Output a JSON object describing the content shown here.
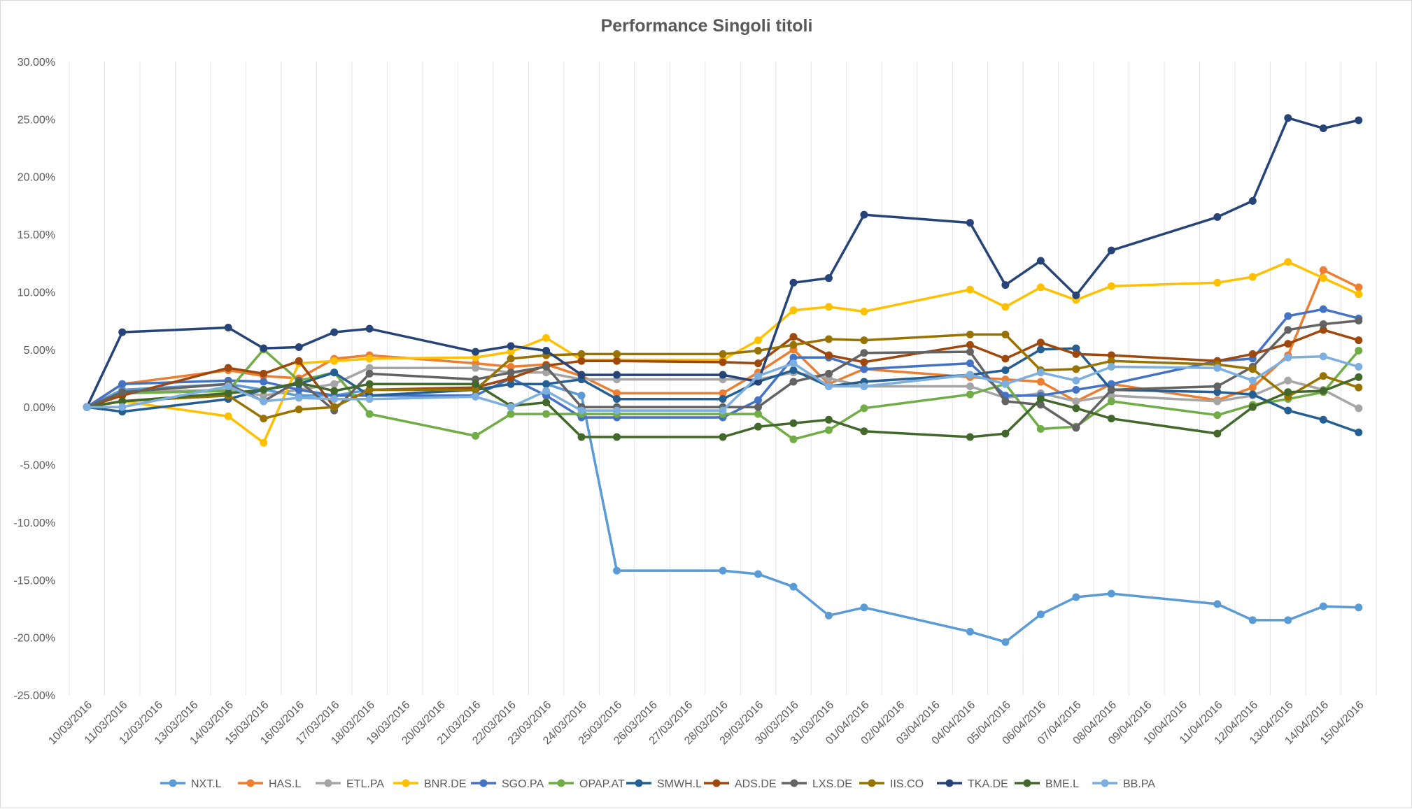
{
  "chart_data": {
    "type": "line",
    "title": "Performance Singoli titoli",
    "xlabel": "",
    "ylabel": "",
    "ylim": [
      -0.25,
      0.3
    ],
    "yticks": [
      0.3,
      0.25,
      0.2,
      0.15,
      0.1,
      0.05,
      0.0,
      -0.05,
      -0.1,
      -0.15,
      -0.2,
      -0.25
    ],
    "ytick_labels": [
      "30.00%",
      "25.00%",
      "20.00%",
      "15.00%",
      "10.00%",
      "5.00%",
      "0.00%",
      "-5.00%",
      "-10.00%",
      "-15.00%",
      "-20.00%",
      "-25.00%"
    ],
    "x": [
      "10/03/2016",
      "11/03/2016",
      "12/03/2016",
      "13/03/2016",
      "14/03/2016",
      "15/03/2016",
      "16/03/2016",
      "17/03/2016",
      "18/03/2016",
      "19/03/2016",
      "20/03/2016",
      "21/03/2016",
      "22/03/2016",
      "23/03/2016",
      "24/03/2016",
      "25/03/2016",
      "26/03/2016",
      "27/03/2016",
      "28/03/2016",
      "29/03/2016",
      "30/03/2016",
      "31/03/2016",
      "01/04/2016",
      "02/04/2016",
      "03/04/2016",
      "04/04/2016",
      "05/04/2016",
      "06/04/2016",
      "07/04/2016",
      "08/04/2016",
      "09/04/2016",
      "10/04/2016",
      "11/04/2016",
      "12/04/2016",
      "13/04/2016",
      "14/04/2016",
      "15/04/2016"
    ],
    "grid": "vertical",
    "legend_position": "bottom",
    "series": [
      {
        "name": "NXT.L",
        "color": "#5b9bd5",
        "values": [
          0,
          0.015,
          null,
          null,
          0.02,
          0.015,
          0.01,
          0.01,
          0.015,
          null,
          null,
          0.015,
          0.02,
          0.02,
          0.01,
          -0.142,
          null,
          null,
          -0.142,
          -0.145,
          -0.156,
          -0.181,
          -0.174,
          null,
          null,
          -0.195,
          -0.204,
          -0.18,
          -0.165,
          -0.162,
          null,
          null,
          -0.171,
          -0.185,
          -0.185,
          -0.173,
          -0.174
        ]
      },
      {
        "name": "HAS.L",
        "color": "#ed7d31",
        "values": [
          0,
          0.02,
          null,
          null,
          0.032,
          0.027,
          0.025,
          0.042,
          0.045,
          null,
          null,
          0.038,
          0.035,
          0.037,
          0.027,
          0.012,
          null,
          null,
          0.012,
          0.03,
          0.05,
          0.02,
          0.033,
          null,
          null,
          0.026,
          0.024,
          0.022,
          0.005,
          0.02,
          null,
          null,
          0.006,
          0.017,
          0.045,
          0.119,
          0.104
        ]
      },
      {
        "name": "ETL.PA",
        "color": "#a5a5a5",
        "values": [
          0,
          0.013,
          null,
          null,
          0.015,
          0.01,
          0.015,
          0.02,
          0.034,
          null,
          null,
          0.034,
          0.03,
          0.03,
          0.024,
          0.024,
          null,
          null,
          0.024,
          0.024,
          0.03,
          0.025,
          0.018,
          null,
          null,
          0.018,
          0.008,
          0.012,
          0.005,
          0.01,
          null,
          null,
          0.005,
          0.01,
          0.023,
          0.015,
          -0.001
        ]
      },
      {
        "name": "BNR.DE",
        "color": "#ffc000",
        "values": [
          0,
          0.005,
          null,
          null,
          -0.008,
          -0.031,
          0.038,
          0.04,
          0.042,
          null,
          null,
          0.043,
          0.048,
          0.06,
          0.041,
          0.041,
          null,
          null,
          0.041,
          0.058,
          0.084,
          0.087,
          0.083,
          null,
          null,
          0.102,
          0.087,
          0.104,
          0.093,
          0.105,
          null,
          null,
          0.108,
          0.113,
          0.126,
          0.112,
          0.098
        ]
      },
      {
        "name": "SGO.PA",
        "color": "#4472c4",
        "values": [
          0,
          0.02,
          null,
          null,
          0.023,
          0.022,
          0.015,
          0.01,
          0.01,
          null,
          null,
          0.01,
          0.025,
          0.01,
          -0.009,
          -0.009,
          null,
          null,
          -0.009,
          0.006,
          0.043,
          0.043,
          0.033,
          null,
          null,
          0.038,
          0.01,
          0.01,
          0.015,
          0.02,
          null,
          null,
          0.04,
          0.042,
          0.079,
          0.085,
          0.077
        ]
      },
      {
        "name": "OPAP.AT",
        "color": "#70ad47",
        "values": [
          0,
          0.012,
          null,
          null,
          0.014,
          0.05,
          0.023,
          0.03,
          -0.006,
          null,
          null,
          -0.025,
          -0.006,
          -0.006,
          -0.006,
          -0.006,
          null,
          null,
          -0.006,
          -0.006,
          -0.028,
          -0.02,
          -0.001,
          null,
          null,
          0.011,
          0.02,
          -0.019,
          -0.017,
          0.005,
          null,
          null,
          -0.007,
          0.002,
          0.007,
          0.013,
          0.049
        ]
      },
      {
        "name": "SMWH.L",
        "color": "#255e91",
        "values": [
          0,
          -0.004,
          null,
          null,
          0.007,
          0.015,
          0.02,
          0.03,
          0.01,
          null,
          null,
          0.015,
          0.02,
          0.02,
          0.024,
          0.007,
          null,
          null,
          0.007,
          0.022,
          0.032,
          0.018,
          0.022,
          null,
          null,
          0.028,
          0.032,
          0.05,
          0.051,
          0.015,
          null,
          null,
          0.013,
          0.011,
          -0.003,
          -0.011,
          -0.022
        ]
      },
      {
        "name": "ADS.DE",
        "color": "#9e480e",
        "values": [
          0,
          0.01,
          null,
          null,
          0.034,
          0.029,
          0.04,
          0.0,
          0.015,
          null,
          null,
          0.017,
          0.025,
          0.036,
          0.04,
          0.04,
          null,
          null,
          0.039,
          0.038,
          0.061,
          0.045,
          0.039,
          null,
          null,
          0.054,
          0.042,
          0.056,
          0.046,
          0.045,
          null,
          null,
          0.04,
          0.046,
          0.055,
          0.067,
          0.058
        ]
      },
      {
        "name": "LXS.DE",
        "color": "#636363",
        "values": [
          0,
          0.013,
          null,
          null,
          0.02,
          0.005,
          0.023,
          -0.003,
          0.029,
          null,
          null,
          0.024,
          0.03,
          0.035,
          0.0,
          0.0,
          null,
          null,
          0.0,
          0.0,
          0.022,
          0.029,
          0.047,
          null,
          null,
          0.048,
          0.005,
          0.002,
          -0.018,
          0.015,
          null,
          null,
          0.018,
          0.035,
          0.067,
          0.072,
          0.075
        ]
      },
      {
        "name": "IIS.CO",
        "color": "#997300",
        "values": [
          0,
          0.005,
          null,
          null,
          0.01,
          -0.01,
          -0.002,
          0.0,
          0.015,
          null,
          null,
          0.015,
          0.042,
          0.045,
          0.046,
          0.046,
          null,
          null,
          0.046,
          0.049,
          0.054,
          0.059,
          0.058,
          null,
          null,
          0.063,
          0.063,
          0.032,
          0.033,
          0.04,
          null,
          null,
          0.037,
          0.033,
          0.009,
          0.027,
          0.017
        ]
      },
      {
        "name": "TKA.DE",
        "color": "#264478",
        "values": [
          0,
          0.065,
          null,
          null,
          0.069,
          0.051,
          0.052,
          0.065,
          0.068,
          null,
          null,
          0.048,
          0.053,
          0.049,
          0.028,
          0.028,
          null,
          null,
          0.028,
          0.022,
          0.108,
          0.112,
          0.167,
          null,
          null,
          0.16,
          0.106,
          0.127,
          0.097,
          0.136,
          null,
          null,
          0.165,
          0.179,
          0.251,
          0.242,
          0.249
        ]
      },
      {
        "name": "BME.L",
        "color": "#43682b",
        "values": [
          0,
          0.005,
          null,
          null,
          0.012,
          0.015,
          0.021,
          0.014,
          0.02,
          null,
          null,
          0.02,
          0.001,
          0.004,
          -0.026,
          -0.026,
          null,
          null,
          -0.026,
          -0.017,
          -0.014,
          -0.011,
          -0.021,
          null,
          null,
          -0.026,
          -0.023,
          0.007,
          -0.001,
          -0.01,
          null,
          null,
          -0.023,
          0.0,
          0.013,
          0.014,
          0.026
        ]
      },
      {
        "name": "BB.PA",
        "color": "#7cafdd",
        "values": [
          0,
          0.0,
          null,
          null,
          0.018,
          0.005,
          0.008,
          0.007,
          0.007,
          null,
          null,
          0.009,
          0.0,
          0.014,
          -0.003,
          -0.003,
          null,
          null,
          -0.003,
          0.027,
          0.038,
          0.018,
          0.018,
          null,
          null,
          0.028,
          0.02,
          0.03,
          0.023,
          0.035,
          null,
          null,
          0.034,
          0.023,
          0.043,
          0.044,
          0.035
        ]
      }
    ]
  }
}
